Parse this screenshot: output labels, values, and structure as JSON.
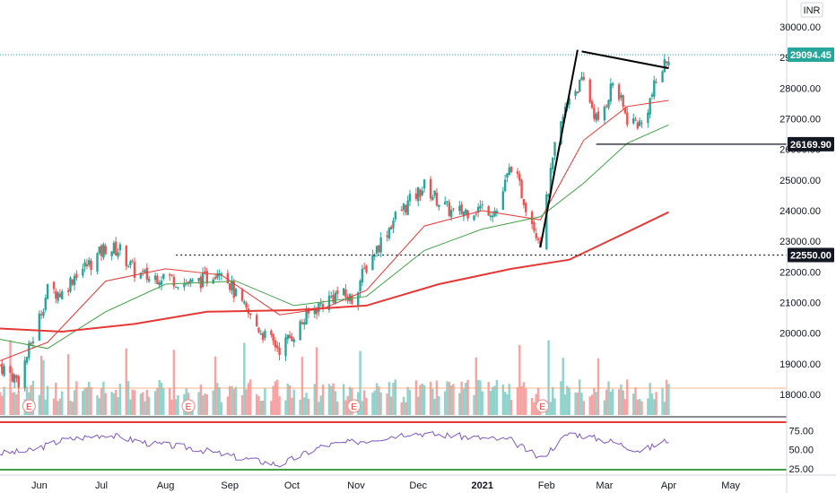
{
  "currency": "INR",
  "colors": {
    "up": "#26a69a",
    "down": "#ef5350",
    "ma_fast": "#e53935",
    "ma_mid": "#43a047",
    "ma_slow": "#e53935",
    "rsi": "#7e57c2",
    "vol_up": "#8fd3cc",
    "vol_down": "#f5a3a3",
    "trendline": "#000000"
  },
  "price_labels": {
    "last": "29094.45",
    "support": "26169.90",
    "breakout": "22550.00"
  },
  "event_marker_label": "E",
  "chart_data": {
    "type": "candlestick",
    "yaxis": {
      "ticks": [
        "30000.00",
        "29000.00",
        "28000.00",
        "27000.00",
        "26000.00",
        "25000.00",
        "24000.00",
        "23000.00",
        "22000.00",
        "21000.00",
        "20000.00",
        "19000.00",
        "18000.00"
      ],
      "range": [
        17800,
        30600
      ]
    },
    "rsi_axis": {
      "ticks": [
        "75.00",
        "50.00",
        "25.00"
      ],
      "range": [
        20,
        80
      ]
    },
    "xaxis": {
      "ticks": [
        "Jun",
        "Jul",
        "Aug",
        "Sep",
        "Oct",
        "Nov",
        "Dec",
        "2021",
        "Feb",
        "Mar",
        "Apr",
        "May"
      ],
      "range": [
        "2020-05-13",
        "2021-05-28"
      ]
    },
    "levels": [
      {
        "name": "last",
        "value": 29094.45,
        "style": "dotted"
      },
      {
        "name": "support",
        "value": 26169.9,
        "style": "solid",
        "start": "2021-02-25"
      },
      {
        "name": "breakout",
        "value": 22550.0,
        "style": "dotted",
        "start": "2020-08-06"
      }
    ],
    "trendlines": [
      {
        "from": [
          "2021-01-29",
          22800
        ],
        "to": [
          "2021-02-16",
          29250
        ]
      },
      {
        "from": [
          "2021-02-18",
          29200
        ],
        "to": [
          "2021-04-01",
          28650
        ]
      }
    ],
    "events": [
      "2020-05-27",
      "2020-08-12",
      "2020-10-31",
      "2021-01-30"
    ],
    "price": [
      {
        "t": "2020-05-13",
        "v": 18950
      },
      {
        "t": "2020-05-22",
        "v": 18450
      },
      {
        "t": "2020-05-29",
        "v": 19850
      },
      {
        "t": "2020-06-05",
        "v": 21400
      },
      {
        "t": "2020-06-12",
        "v": 21300
      },
      {
        "t": "2020-06-19",
        "v": 22000
      },
      {
        "t": "2020-06-26",
        "v": 22300
      },
      {
        "t": "2020-07-03",
        "v": 22800
      },
      {
        "t": "2020-07-10",
        "v": 22700
      },
      {
        "t": "2020-07-17",
        "v": 22000
      },
      {
        "t": "2020-07-24",
        "v": 21800
      },
      {
        "t": "2020-07-31",
        "v": 21900
      },
      {
        "t": "2020-08-07",
        "v": 21700
      },
      {
        "t": "2020-08-14",
        "v": 21600
      },
      {
        "t": "2020-08-21",
        "v": 21800
      },
      {
        "t": "2020-08-28",
        "v": 22200
      },
      {
        "t": "2020-09-04",
        "v": 21200
      },
      {
        "t": "2020-09-11",
        "v": 20500
      },
      {
        "t": "2020-09-18",
        "v": 19900
      },
      {
        "t": "2020-09-25",
        "v": 19500
      },
      {
        "t": "2020-10-02",
        "v": 20000
      },
      {
        "t": "2020-10-09",
        "v": 20600
      },
      {
        "t": "2020-10-16",
        "v": 21000
      },
      {
        "t": "2020-10-23",
        "v": 21300
      },
      {
        "t": "2020-10-30",
        "v": 21100
      },
      {
        "t": "2020-11-06",
        "v": 22200
      },
      {
        "t": "2020-11-13",
        "v": 23000
      },
      {
        "t": "2020-11-20",
        "v": 23800
      },
      {
        "t": "2020-11-27",
        "v": 24300
      },
      {
        "t": "2020-12-04",
        "v": 24800
      },
      {
        "t": "2020-12-11",
        "v": 24300
      },
      {
        "t": "2020-12-18",
        "v": 23900
      },
      {
        "t": "2020-12-25",
        "v": 24000
      },
      {
        "t": "2021-01-01",
        "v": 24100
      },
      {
        "t": "2021-01-08",
        "v": 24000
      },
      {
        "t": "2021-01-15",
        "v": 25500
      },
      {
        "t": "2021-01-22",
        "v": 24200
      },
      {
        "t": "2021-01-29",
        "v": 23000
      },
      {
        "t": "2021-02-05",
        "v": 26000
      },
      {
        "t": "2021-02-12",
        "v": 27800
      },
      {
        "t": "2021-02-19",
        "v": 28200
      },
      {
        "t": "2021-02-26",
        "v": 26800
      },
      {
        "t": "2021-03-05",
        "v": 28200
      },
      {
        "t": "2021-03-12",
        "v": 27000
      },
      {
        "t": "2021-03-19",
        "v": 26800
      },
      {
        "t": "2021-03-26",
        "v": 28200
      },
      {
        "t": "2021-04-01",
        "v": 29094
      }
    ],
    "series": [
      {
        "name": "ma_fast",
        "values": [
          {
            "t": "2020-05-13",
            "v": 19100
          },
          {
            "t": "2020-06-05",
            "v": 19700
          },
          {
            "t": "2020-07-03",
            "v": 21700
          },
          {
            "t": "2020-08-01",
            "v": 22100
          },
          {
            "t": "2020-08-28",
            "v": 21900
          },
          {
            "t": "2020-09-25",
            "v": 20600
          },
          {
            "t": "2020-10-16",
            "v": 20800
          },
          {
            "t": "2020-11-06",
            "v": 21400
          },
          {
            "t": "2020-12-04",
            "v": 23500
          },
          {
            "t": "2021-01-01",
            "v": 24000
          },
          {
            "t": "2021-01-29",
            "v": 23700
          },
          {
            "t": "2021-02-19",
            "v": 26300
          },
          {
            "t": "2021-03-12",
            "v": 27400
          },
          {
            "t": "2021-04-01",
            "v": 27600
          }
        ]
      },
      {
        "name": "ma_mid",
        "values": [
          {
            "t": "2020-05-13",
            "v": 19800
          },
          {
            "t": "2020-06-05",
            "v": 19500
          },
          {
            "t": "2020-07-03",
            "v": 20700
          },
          {
            "t": "2020-08-01",
            "v": 21600
          },
          {
            "t": "2020-09-04",
            "v": 21700
          },
          {
            "t": "2020-10-02",
            "v": 20900
          },
          {
            "t": "2020-11-06",
            "v": 21200
          },
          {
            "t": "2020-12-04",
            "v": 22700
          },
          {
            "t": "2021-01-01",
            "v": 23400
          },
          {
            "t": "2021-01-29",
            "v": 23800
          },
          {
            "t": "2021-02-19",
            "v": 24900
          },
          {
            "t": "2021-03-12",
            "v": 26200
          },
          {
            "t": "2021-04-01",
            "v": 26800
          }
        ]
      },
      {
        "name": "ma_slow",
        "values": [
          {
            "t": "2020-05-13",
            "v": 20150
          },
          {
            "t": "2020-06-12",
            "v": 20050
          },
          {
            "t": "2020-07-17",
            "v": 20300
          },
          {
            "t": "2020-08-21",
            "v": 20700
          },
          {
            "t": "2020-10-02",
            "v": 20750
          },
          {
            "t": "2020-11-06",
            "v": 20900
          },
          {
            "t": "2020-12-11",
            "v": 21600
          },
          {
            "t": "2021-01-15",
            "v": 22100
          },
          {
            "t": "2021-02-12",
            "v": 22400
          },
          {
            "t": "2021-03-12",
            "v": 23300
          },
          {
            "t": "2021-04-01",
            "v": 23950
          }
        ]
      },
      {
        "name": "rsi",
        "values": [
          {
            "t": "2020-05-13",
            "v": 45
          },
          {
            "t": "2020-05-27",
            "v": 48
          },
          {
            "t": "2020-06-12",
            "v": 62
          },
          {
            "t": "2020-07-03",
            "v": 70
          },
          {
            "t": "2020-07-24",
            "v": 58
          },
          {
            "t": "2020-08-14",
            "v": 52
          },
          {
            "t": "2020-09-04",
            "v": 40
          },
          {
            "t": "2020-09-25",
            "v": 30
          },
          {
            "t": "2020-10-16",
            "v": 55
          },
          {
            "t": "2020-11-06",
            "v": 62
          },
          {
            "t": "2020-11-27",
            "v": 72
          },
          {
            "t": "2020-12-18",
            "v": 68
          },
          {
            "t": "2021-01-15",
            "v": 62
          },
          {
            "t": "2021-01-29",
            "v": 38
          },
          {
            "t": "2021-02-12",
            "v": 72
          },
          {
            "t": "2021-03-05",
            "v": 60
          },
          {
            "t": "2021-03-19",
            "v": 48
          },
          {
            "t": "2021-04-01",
            "v": 63
          }
        ]
      }
    ]
  }
}
